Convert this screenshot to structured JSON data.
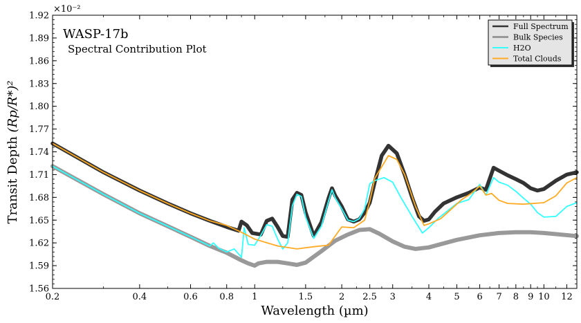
{
  "chart_data": {
    "type": "line",
    "title": "WASP-17b",
    "subtitle": "Spectral Contribution Plot",
    "xlabel": "Wavelength (µm)",
    "ylabel_main": "Transit Depth ",
    "ylabel_formula": "(Rp/R*)²",
    "exponent_label": "×10⁻²",
    "x_scale": "log",
    "xlim": [
      0.2,
      13
    ],
    "ylim": [
      1.56,
      1.92
    ],
    "x_ticks": [
      0.2,
      0.4,
      0.6,
      0.8,
      1,
      1.5,
      2,
      2.5,
      3,
      4,
      5,
      6,
      7,
      8,
      9,
      10,
      12
    ],
    "x_tick_labels": [
      "0.2",
      "0.4",
      "0.6",
      "0.8",
      "1",
      "1.5",
      "2",
      "2.5",
      "3",
      "4",
      "5",
      "6",
      "7",
      "8",
      "9",
      "10",
      "12"
    ],
    "y_ticks": [
      1.56,
      1.59,
      1.62,
      1.65,
      1.68,
      1.71,
      1.74,
      1.77,
      1.8,
      1.83,
      1.86,
      1.89,
      1.92
    ],
    "y_tick_labels": [
      "1.56",
      "1.59",
      "1.62",
      "1.65",
      "1.68",
      "1.71",
      "1.74",
      "1.77",
      "1.80",
      "1.83",
      "1.86",
      "1.89",
      "1.92"
    ],
    "legend_position": "top-right",
    "grid": false,
    "series": [
      {
        "name": "Full Spectrum",
        "color": "#333333",
        "points": [
          [
            0.2,
            1.751
          ],
          [
            0.3,
            1.713
          ],
          [
            0.4,
            1.689
          ],
          [
            0.5,
            1.672
          ],
          [
            0.6,
            1.659
          ],
          [
            0.7,
            1.649
          ],
          [
            0.8,
            1.641
          ],
          [
            0.88,
            1.636
          ],
          [
            0.9,
            1.648
          ],
          [
            0.94,
            1.643
          ],
          [
            0.98,
            1.633
          ],
          [
            1.05,
            1.631
          ],
          [
            1.1,
            1.649
          ],
          [
            1.15,
            1.652
          ],
          [
            1.2,
            1.641
          ],
          [
            1.25,
            1.629
          ],
          [
            1.3,
            1.628
          ],
          [
            1.35,
            1.677
          ],
          [
            1.4,
            1.686
          ],
          [
            1.45,
            1.683
          ],
          [
            1.5,
            1.66
          ],
          [
            1.6,
            1.629
          ],
          [
            1.7,
            1.647
          ],
          [
            1.8,
            1.679
          ],
          [
            1.85,
            1.692
          ],
          [
            1.9,
            1.682
          ],
          [
            2.0,
            1.668
          ],
          [
            2.1,
            1.651
          ],
          [
            2.2,
            1.648
          ],
          [
            2.3,
            1.651
          ],
          [
            2.4,
            1.66
          ],
          [
            2.5,
            1.673
          ],
          [
            2.6,
            1.7
          ],
          [
            2.75,
            1.735
          ],
          [
            2.9,
            1.748
          ],
          [
            3.1,
            1.738
          ],
          [
            3.3,
            1.71
          ],
          [
            3.5,
            1.68
          ],
          [
            3.7,
            1.655
          ],
          [
            3.85,
            1.649
          ],
          [
            4.0,
            1.651
          ],
          [
            4.2,
            1.661
          ],
          [
            4.5,
            1.672
          ],
          [
            5.0,
            1.68
          ],
          [
            5.5,
            1.686
          ],
          [
            6.0,
            1.693
          ],
          [
            6.3,
            1.69
          ],
          [
            6.7,
            1.719
          ],
          [
            7.0,
            1.715
          ],
          [
            7.5,
            1.709
          ],
          [
            8.0,
            1.704
          ],
          [
            8.5,
            1.699
          ],
          [
            9.0,
            1.692
          ],
          [
            9.5,
            1.689
          ],
          [
            10.0,
            1.691
          ],
          [
            11.0,
            1.702
          ],
          [
            12.0,
            1.71
          ],
          [
            13.0,
            1.713
          ]
        ]
      },
      {
        "name": "Bulk Species",
        "color": "#999999",
        "points": [
          [
            0.2,
            1.721
          ],
          [
            0.3,
            1.684
          ],
          [
            0.4,
            1.659
          ],
          [
            0.5,
            1.642
          ],
          [
            0.6,
            1.628
          ],
          [
            0.7,
            1.616
          ],
          [
            0.8,
            1.607
          ],
          [
            0.9,
            1.597
          ],
          [
            0.95,
            1.593
          ],
          [
            1.0,
            1.59
          ],
          [
            1.03,
            1.593
          ],
          [
            1.1,
            1.595
          ],
          [
            1.2,
            1.595
          ],
          [
            1.3,
            1.593
          ],
          [
            1.4,
            1.591
          ],
          [
            1.5,
            1.594
          ],
          [
            1.7,
            1.609
          ],
          [
            1.9,
            1.623
          ],
          [
            2.1,
            1.631
          ],
          [
            2.3,
            1.637
          ],
          [
            2.5,
            1.638
          ],
          [
            2.7,
            1.632
          ],
          [
            3.0,
            1.622
          ],
          [
            3.3,
            1.615
          ],
          [
            3.6,
            1.612
          ],
          [
            4.0,
            1.614
          ],
          [
            5.0,
            1.624
          ],
          [
            6.0,
            1.63
          ],
          [
            7.0,
            1.633
          ],
          [
            8.0,
            1.634
          ],
          [
            9.0,
            1.634
          ],
          [
            10.0,
            1.633
          ],
          [
            13.0,
            1.629
          ]
        ]
      },
      {
        "name": "H2O",
        "color": "#33ffff",
        "points": [
          [
            0.2,
            1.721
          ],
          [
            0.3,
            1.684
          ],
          [
            0.4,
            1.659
          ],
          [
            0.5,
            1.642
          ],
          [
            0.6,
            1.628
          ],
          [
            0.7,
            1.616
          ],
          [
            0.72,
            1.62
          ],
          [
            0.75,
            1.613
          ],
          [
            0.8,
            1.608
          ],
          [
            0.85,
            1.612
          ],
          [
            0.9,
            1.601
          ],
          [
            0.92,
            1.64
          ],
          [
            0.95,
            1.618
          ],
          [
            1.0,
            1.617
          ],
          [
            1.05,
            1.63
          ],
          [
            1.1,
            1.644
          ],
          [
            1.15,
            1.642
          ],
          [
            1.2,
            1.625
          ],
          [
            1.25,
            1.612
          ],
          [
            1.3,
            1.62
          ],
          [
            1.35,
            1.669
          ],
          [
            1.4,
            1.684
          ],
          [
            1.45,
            1.681
          ],
          [
            1.5,
            1.654
          ],
          [
            1.6,
            1.626
          ],
          [
            1.7,
            1.642
          ],
          [
            1.8,
            1.675
          ],
          [
            1.85,
            1.69
          ],
          [
            1.9,
            1.679
          ],
          [
            2.0,
            1.665
          ],
          [
            2.1,
            1.65
          ],
          [
            2.2,
            1.648
          ],
          [
            2.3,
            1.652
          ],
          [
            2.4,
            1.665
          ],
          [
            2.5,
            1.698
          ],
          [
            2.6,
            1.702
          ],
          [
            2.8,
            1.706
          ],
          [
            3.0,
            1.7
          ],
          [
            3.2,
            1.68
          ],
          [
            3.5,
            1.655
          ],
          [
            3.8,
            1.633
          ],
          [
            4.0,
            1.64
          ],
          [
            4.3,
            1.652
          ],
          [
            4.6,
            1.661
          ],
          [
            5.0,
            1.672
          ],
          [
            5.5,
            1.677
          ],
          [
            6.0,
            1.697
          ],
          [
            6.3,
            1.683
          ],
          [
            6.7,
            1.706
          ],
          [
            7.0,
            1.7
          ],
          [
            7.5,
            1.696
          ],
          [
            8.0,
            1.688
          ],
          [
            8.5,
            1.679
          ],
          [
            9.0,
            1.671
          ],
          [
            9.5,
            1.66
          ],
          [
            10.0,
            1.654
          ],
          [
            11.0,
            1.655
          ],
          [
            12.0,
            1.668
          ],
          [
            13.0,
            1.673
          ]
        ]
      },
      {
        "name": "Total Clouds",
        "color": "#ffaa22",
        "points": [
          [
            0.2,
            1.751
          ],
          [
            0.3,
            1.713
          ],
          [
            0.4,
            1.689
          ],
          [
            0.5,
            1.672
          ],
          [
            0.6,
            1.659
          ],
          [
            0.7,
            1.649
          ],
          [
            0.8,
            1.643
          ],
          [
            0.9,
            1.634
          ],
          [
            1.0,
            1.625
          ],
          [
            1.2,
            1.616
          ],
          [
            1.4,
            1.612
          ],
          [
            1.6,
            1.615
          ],
          [
            1.8,
            1.617
          ],
          [
            2.0,
            1.641
          ],
          [
            2.2,
            1.64
          ],
          [
            2.4,
            1.65
          ],
          [
            2.5,
            1.675
          ],
          [
            2.6,
            1.705
          ],
          [
            2.9,
            1.735
          ],
          [
            3.1,
            1.73
          ],
          [
            3.3,
            1.71
          ],
          [
            3.6,
            1.668
          ],
          [
            3.85,
            1.643
          ],
          [
            4.0,
            1.645
          ],
          [
            4.4,
            1.652
          ],
          [
            4.8,
            1.665
          ],
          [
            5.2,
            1.677
          ],
          [
            5.6,
            1.685
          ],
          [
            6.0,
            1.695
          ],
          [
            6.3,
            1.683
          ],
          [
            6.6,
            1.685
          ],
          [
            7.0,
            1.676
          ],
          [
            7.5,
            1.672
          ],
          [
            8.5,
            1.671
          ],
          [
            10.0,
            1.673
          ],
          [
            11.0,
            1.682
          ],
          [
            12.0,
            1.699
          ],
          [
            13.0,
            1.706
          ]
        ]
      }
    ]
  }
}
